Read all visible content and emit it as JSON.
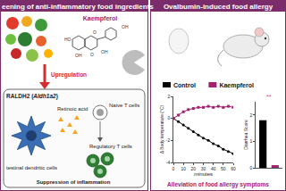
{
  "left_panel": {
    "title": "eening of anti-inflammatory food ingredients",
    "compound": "Kaempferol",
    "atoms": [
      "HO",
      "OH",
      "O",
      "OH",
      "O",
      "OH"
    ],
    "arrow_label": "Upregulation",
    "enzyme_label": [
      "RALDH2 (",
      "Aldh1a2",
      ")"
    ],
    "metabolite": "Retinoic acid",
    "naive_cells": "Naive T cells",
    "regulatory_cells": "Regulatory T cells",
    "dendritic_cells": "testinal dendritic cells",
    "effect": "Suppression of inflammation"
  },
  "right_panel": {
    "title": "Ovalbumin-induced food allergy",
    "conclusion": "Alleviation of food allergy symptoms"
  },
  "chart_data": [
    {
      "type": "line",
      "x_label": "minutes",
      "y_label": "Δ Body temperature (°C)",
      "x": [
        0,
        5,
        10,
        15,
        20,
        25,
        30,
        35,
        40,
        45,
        50,
        55,
        60
      ],
      "series": [
        {
          "name": "Control",
          "color": "#000000",
          "marker": "circle",
          "values": [
            0,
            -0.3,
            -0.6,
            -0.9,
            -1.2,
            -1.5,
            -1.8,
            -2.0,
            -2.3,
            -2.5,
            -2.8,
            -3.0,
            -3.2
          ]
        },
        {
          "name": "Kaempferol",
          "color": "#a0236e",
          "marker": "square",
          "values": [
            0,
            0.3,
            0.6,
            0.8,
            0.9,
            1.0,
            1.0,
            1.1,
            1.0,
            1.1,
            1.0,
            1.1,
            1.0
          ]
        }
      ],
      "xlim": [
        0,
        60
      ],
      "xticks": [
        0,
        10,
        20,
        30,
        40,
        50,
        60
      ],
      "ylim": [
        -4,
        2
      ],
      "yticks": [
        -4,
        -2,
        0,
        2
      ],
      "grid": false,
      "legend": "top"
    },
    {
      "type": "bar",
      "y_label": "Diarrhea Score",
      "categories": [
        null,
        null
      ],
      "values": [
        1.8,
        0.1
      ],
      "colors": [
        "#000000",
        "#a0236e"
      ],
      "ylim": [
        0,
        2.5
      ],
      "yticks": [
        0,
        1,
        2
      ],
      "annotations": [
        "**"
      ],
      "grid": false,
      "tick_labels": "y"
    }
  ]
}
